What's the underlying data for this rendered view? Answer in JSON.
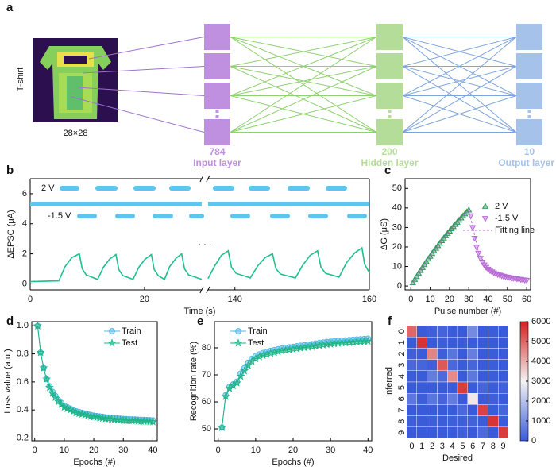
{
  "diagram": {
    "panel": "a",
    "image_label": "T-shirt",
    "image_size": "28×28",
    "layers": [
      {
        "count": 784,
        "name": "Input layer",
        "color": "#bf8fe0"
      },
      {
        "count": 200,
        "name": "Hidden layer",
        "color": "#b5dd9a"
      },
      {
        "count": 10,
        "name": "Output layer",
        "color": "#a4c2ea"
      }
    ]
  },
  "chart_data": [
    {
      "type": "line",
      "panel": "b",
      "x_label": "Time (s)",
      "y_label": "ΔEPSC (μA)",
      "color": "#1fbf8f",
      "pulse_labels": [
        "2 V",
        "-1.5 V"
      ],
      "annotation": "· · ·",
      "xlim": [
        0,
        160
      ],
      "x_break": [
        30,
        136
      ],
      "xticks": [
        0,
        20,
        140,
        160
      ],
      "ylim": [
        -0.4,
        7
      ],
      "yticks": [
        0,
        2,
        4,
        6
      ],
      "x": [
        0,
        5,
        6.1,
        7.3,
        8.6,
        9.1,
        9.8,
        11.8,
        12.8,
        13.9,
        15,
        15.5,
        16.2,
        18,
        19,
        20.1,
        21.2,
        21.7,
        22.4,
        23.5,
        24.4,
        25.5,
        26.5,
        27,
        27.7,
        30,
        136,
        137,
        138,
        139,
        139.5,
        140.2,
        142.3,
        143.4,
        144.5,
        145.6,
        146.1,
        146.8,
        149,
        150.1,
        151.2,
        152.3,
        152.8,
        153.5,
        155.5,
        156.6,
        157.8,
        158.9,
        159.3,
        160
      ],
      "values": [
        0.15,
        0.2,
        1.15,
        1.75,
        2.0,
        1.0,
        0.6,
        0.3,
        1.1,
        1.65,
        1.95,
        0.95,
        0.55,
        0.3,
        1.1,
        1.65,
        1.95,
        0.95,
        0.55,
        0.3,
        1.15,
        1.7,
        2.0,
        1.0,
        0.6,
        0.3,
        0.35,
        1.2,
        1.9,
        2.2,
        1.1,
        0.7,
        0.4,
        1.2,
        1.75,
        2.0,
        1.0,
        0.65,
        0.4,
        1.25,
        1.9,
        2.2,
        1.1,
        0.7,
        0.45,
        1.4,
        2.05,
        2.4,
        1.3,
        0.75
      ]
    },
    {
      "type": "scatter",
      "panel": "c",
      "x_label": "Pulse number (#)",
      "y_label": "ΔG (μS)",
      "legend": "right",
      "xlim": [
        -3,
        62
      ],
      "xticks": [
        0,
        10,
        20,
        30,
        40,
        50,
        60
      ],
      "ylim": [
        -2,
        55
      ],
      "yticks": [
        0,
        10,
        20,
        30,
        40,
        50
      ],
      "series": [
        {
          "name": "2 V",
          "color": "#2e9b5a",
          "marker": "triangle",
          "x": [
            1,
            2,
            3,
            4,
            5,
            6,
            7,
            8,
            9,
            10,
            11,
            12,
            13,
            14,
            15,
            16,
            17,
            18,
            19,
            20,
            21,
            22,
            23,
            24,
            25,
            26,
            27,
            28,
            29,
            30
          ],
          "values": [
            1.6,
            3.3,
            4.8,
            6.4,
            7.9,
            9.4,
            10.9,
            12.4,
            13.8,
            15.2,
            16.6,
            18.0,
            19.3,
            20.6,
            21.9,
            23.2,
            24.5,
            25.7,
            26.9,
            28.1,
            29.3,
            30.4,
            31.5,
            32.6,
            33.7,
            34.8,
            35.9,
            36.9,
            37.9,
            38.9
          ]
        },
        {
          "name": "-1.5 V",
          "color": "#b76ad4",
          "marker": "triangle-down",
          "x": [
            31,
            32,
            33,
            34,
            35,
            36,
            37,
            38,
            39,
            40,
            41,
            42,
            43,
            44,
            45,
            46,
            47,
            48,
            49,
            50,
            51,
            52,
            53,
            54,
            55,
            56,
            57,
            58,
            59,
            60
          ],
          "values": [
            36.0,
            30.0,
            24.5,
            20.0,
            16.8,
            14.2,
            12.3,
            10.8,
            9.6,
            8.7,
            7.9,
            7.3,
            6.8,
            6.3,
            5.9,
            5.6,
            5.3,
            5.0,
            4.8,
            4.6,
            4.4,
            4.2,
            4.0,
            3.8,
            3.7,
            3.5,
            3.4,
            3.2,
            3.1,
            3.0
          ]
        },
        {
          "name": "Fitting line",
          "color": "#b76ad4",
          "style": "dashed",
          "x": [
            0,
            5,
            10,
            15,
            20,
            25,
            30,
            32,
            35,
            40,
            45,
            50,
            55,
            60
          ],
          "values": [
            0,
            8.0,
            15.4,
            22.1,
            28.2,
            33.8,
            39.0,
            30.5,
            17.2,
            8.7,
            5.9,
            4.4,
            3.5,
            3.0
          ]
        }
      ]
    },
    {
      "type": "line",
      "panel": "d",
      "x_label": "Epochs (#)",
      "y_label": "Loss value (a.u.)",
      "legend": "upper right",
      "line": true,
      "xlim": [
        -1,
        41.5
      ],
      "xticks": [
        0,
        10,
        20,
        30,
        40
      ],
      "ylim": [
        0.18,
        1.03
      ],
      "yticks": [
        0.2,
        0.4,
        0.6,
        0.8,
        {
          "value": 1,
          "label": "1.0"
        }
      ],
      "x": [
        1,
        2,
        3,
        4,
        5,
        6,
        7,
        8,
        9,
        10,
        11,
        12,
        13,
        14,
        15,
        16,
        17,
        18,
        19,
        20,
        21,
        22,
        23,
        24,
        25,
        26,
        27,
        28,
        29,
        30,
        31,
        32,
        33,
        34,
        35,
        36,
        37,
        38,
        39,
        40
      ],
      "series": [
        {
          "name": "Train",
          "color": "#4fb8ea",
          "marker": "circle",
          "values": [
            1.0,
            0.81,
            0.7,
            0.62,
            0.57,
            0.53,
            0.5,
            0.47,
            0.45,
            0.43,
            0.42,
            0.41,
            0.4,
            0.39,
            0.385,
            0.38,
            0.375,
            0.37,
            0.365,
            0.36,
            0.357,
            0.354,
            0.351,
            0.348,
            0.346,
            0.344,
            0.342,
            0.34,
            0.338,
            0.336,
            0.335,
            0.334,
            0.333,
            0.332,
            0.331,
            0.33,
            0.329,
            0.328,
            0.327,
            0.326
          ]
        },
        {
          "name": "Test",
          "color": "#1fb585",
          "marker": "star",
          "values": [
            1.0,
            0.81,
            0.7,
            0.62,
            0.56,
            0.52,
            0.49,
            0.46,
            0.44,
            0.42,
            0.41,
            0.4,
            0.39,
            0.38,
            0.375,
            0.37,
            0.365,
            0.36,
            0.355,
            0.35,
            0.347,
            0.344,
            0.341,
            0.338,
            0.336,
            0.334,
            0.332,
            0.33,
            0.328,
            0.326,
            0.325,
            0.324,
            0.323,
            0.322,
            0.321,
            0.32,
            0.319,
            0.318,
            0.317,
            0.316
          ]
        }
      ]
    },
    {
      "type": "line",
      "panel": "e",
      "x_label": "Epochs (#)",
      "y_label": "Recognition rate (%)",
      "legend": "upper left",
      "line": true,
      "xlim": [
        -1,
        41
      ],
      "xticks": [
        0,
        10,
        20,
        30,
        40
      ],
      "ylim": [
        45.6,
        89.7
      ],
      "yticks": [
        50,
        60,
        70,
        80
      ],
      "x": [
        1,
        2,
        3,
        4,
        5,
        6,
        7,
        8,
        9,
        10,
        11,
        12,
        13,
        14,
        15,
        16,
        17,
        18,
        19,
        20,
        21,
        22,
        23,
        24,
        25,
        26,
        27,
        28,
        29,
        30,
        31,
        32,
        33,
        34,
        35,
        36,
        37,
        38,
        39,
        40
      ],
      "series": [
        {
          "name": "Train",
          "color": "#4fb8ea",
          "marker": "circle",
          "values": [
            50.5,
            62.5,
            65.5,
            66.5,
            67.5,
            70.5,
            72.5,
            74.5,
            76,
            77,
            77.6,
            78.1,
            78.5,
            78.9,
            79.2,
            79.5,
            79.8,
            80.0,
            80.2,
            80.4,
            80.6,
            80.8,
            81.0,
            81.2,
            81.4,
            81.6,
            81.8,
            82.0,
            82.2,
            82.3,
            82.5,
            82.6,
            82.7,
            82.8,
            82.9,
            83.0,
            83.1,
            83.2,
            83.3,
            83.4
          ]
        },
        {
          "name": "Test",
          "color": "#1fb585",
          "marker": "star",
          "values": [
            50.5,
            62,
            65,
            66,
            67,
            69.5,
            71.5,
            73.5,
            75,
            76,
            76.7,
            77.2,
            77.6,
            78.0,
            78.3,
            78.6,
            78.9,
            79.1,
            79.3,
            79.5,
            79.7,
            79.9,
            80.1,
            80.3,
            80.5,
            80.7,
            80.9,
            81.1,
            81.3,
            81.4,
            81.6,
            81.7,
            81.8,
            81.9,
            82.0,
            82.1,
            82.2,
            82.3,
            82.4,
            82.5
          ]
        }
      ]
    },
    {
      "type": "heatmap",
      "panel": "f",
      "x_label": "Desired",
      "y_label": "Inferred",
      "x_categories": [
        "0",
        "1",
        "2",
        "3",
        "4",
        "5",
        "6",
        "7",
        "8",
        "9"
      ],
      "y_categories": [
        "0",
        "1",
        "2",
        "3",
        "4",
        "5",
        "6",
        "7",
        "8",
        "9"
      ],
      "zlim": [
        0,
        6000
      ],
      "zticks": [
        0,
        1000,
        2000,
        3000,
        4000,
        5000,
        6000
      ],
      "colormap": [
        "#3a5bd9",
        "#f4f4f4",
        "#d42020"
      ],
      "matrix": [
        [
          5000,
          20,
          90,
          180,
          20,
          0,
          950,
          0,
          30,
          0
        ],
        [
          10,
          5700,
          5,
          50,
          15,
          0,
          10,
          0,
          5,
          0
        ],
        [
          100,
          20,
          4600,
          60,
          500,
          0,
          700,
          0,
          40,
          0
        ],
        [
          250,
          200,
          80,
          5200,
          250,
          5,
          200,
          0,
          40,
          0
        ],
        [
          30,
          20,
          650,
          300,
          4500,
          0,
          550,
          0,
          30,
          0
        ],
        [
          5,
          0,
          0,
          0,
          0,
          5600,
          0,
          200,
          20,
          120
        ],
        [
          550,
          50,
          500,
          180,
          650,
          0,
          3200,
          0,
          80,
          0
        ],
        [
          0,
          0,
          0,
          0,
          0,
          250,
          0,
          5500,
          20,
          200
        ],
        [
          60,
          10,
          70,
          30,
          60,
          50,
          140,
          10,
          5700,
          10
        ],
        [
          0,
          0,
          0,
          0,
          0,
          90,
          0,
          290,
          5,
          5600
        ]
      ]
    }
  ]
}
